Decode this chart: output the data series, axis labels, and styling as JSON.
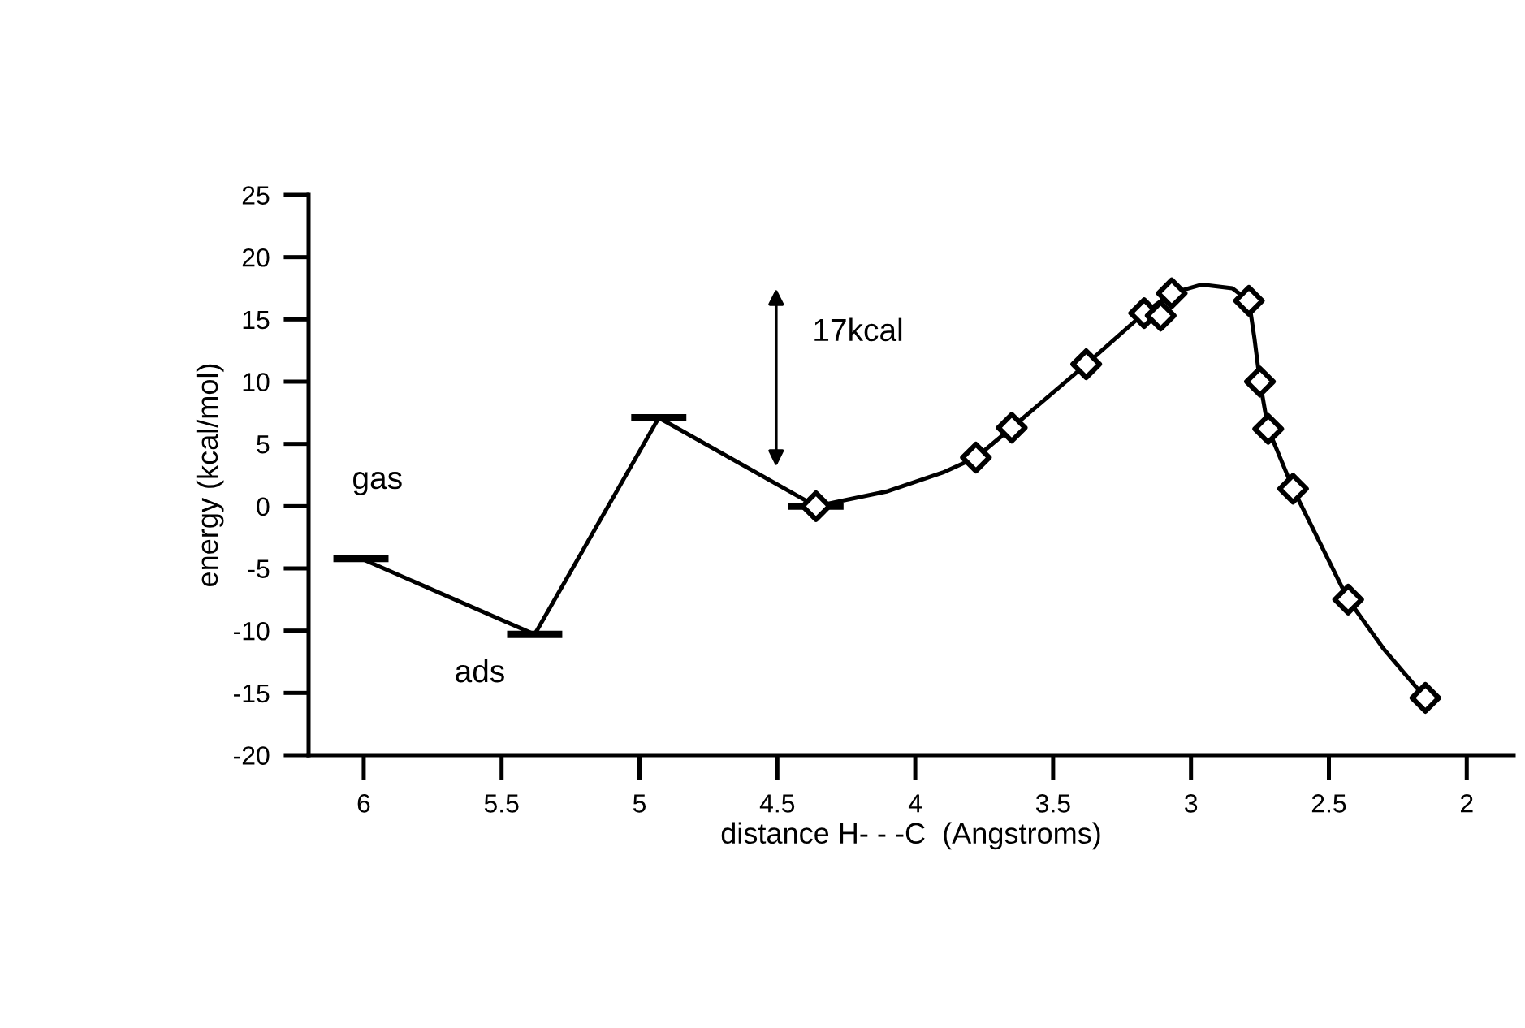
{
  "chart_data": {
    "type": "line",
    "xlabel": "distance H- - -C  (Angstroms)",
    "ylabel": "energy (kcal/mol)",
    "xlim": [
      6.2,
      1.83
    ],
    "xticks": [
      6,
      5.5,
      5,
      4.5,
      4,
      3.5,
      3,
      2.5,
      2
    ],
    "ylim": [
      -20,
      25
    ],
    "yticks": [
      -20,
      -15,
      -10,
      -5,
      0,
      5,
      10,
      15,
      20,
      25
    ],
    "line_style": "solid",
    "series": [
      {
        "color": "#000000",
        "marker": "none",
        "x": [
          6.01,
          5.38,
          4.93,
          4.36
        ],
        "values": [
          -4.2,
          -10.3,
          7.1,
          0
        ],
        "xerrors": [
          0.1,
          0.1,
          0.1,
          0.1
        ]
      },
      {
        "color": "#000000",
        "marker": "none",
        "x": [
          4.36,
          4.1,
          3.9,
          3.78,
          3.65,
          3.38,
          3.17,
          3.07,
          2.96,
          2.85,
          2.79,
          2.77,
          2.75,
          2.72,
          2.63,
          2.43,
          2.3,
          2.15
        ],
        "values": [
          0,
          1.2,
          2.7,
          3.9,
          6.3,
          11.4,
          15.5,
          17.1,
          17.8,
          17.5,
          16.5,
          13.5,
          10.0,
          6.2,
          1.4,
          -7.5,
          -11.5,
          -15.4
        ]
      },
      {
        "type": "scatter",
        "color": "#000000",
        "marker": "diamond",
        "x": [
          4.36,
          3.78,
          3.65,
          3.38,
          3.17,
          3.11,
          3.07,
          2.79,
          2.75,
          2.72,
          2.63,
          2.43,
          2.15
        ],
        "values": [
          0,
          3.9,
          6.3,
          11.4,
          15.5,
          15.3,
          17.1,
          16.5,
          10.0,
          6.2,
          1.4,
          -7.5,
          -15.4
        ]
      }
    ],
    "annotations": [
      "17kcal",
      "gas",
      "ads"
    ]
  }
}
